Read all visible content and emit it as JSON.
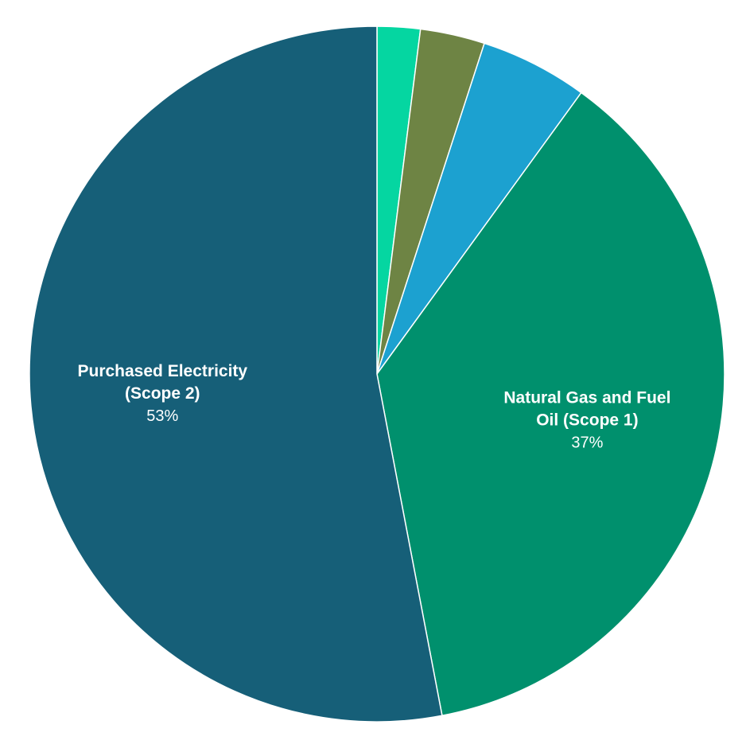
{
  "chart_data": {
    "type": "pie",
    "title": "",
    "start": "12 o'clock",
    "direction": "clockwise",
    "slices": [
      {
        "name": "",
        "value": 2,
        "color": "#05d6a1",
        "label_lines": [],
        "pct_label": ""
      },
      {
        "name": "",
        "value": 3,
        "color": "#6e8444",
        "label_lines": [],
        "pct_label": ""
      },
      {
        "name": "",
        "value": 5,
        "color": "#1ca1d0",
        "label_lines": [],
        "pct_label": ""
      },
      {
        "name": "Natural Gas and Fuel Oil (Scope 1)",
        "value": 37,
        "color": "#00906d",
        "label_lines": [
          "Natural Gas and Fuel",
          "Oil (Scope 1)"
        ],
        "pct_label": "37%"
      },
      {
        "name": "Purchased Electricity (Scope 2)",
        "value": 53,
        "color": "#165f78",
        "label_lines": [
          "Purchased Electricity",
          "(Scope 2)"
        ],
        "pct_label": "53%"
      }
    ]
  }
}
